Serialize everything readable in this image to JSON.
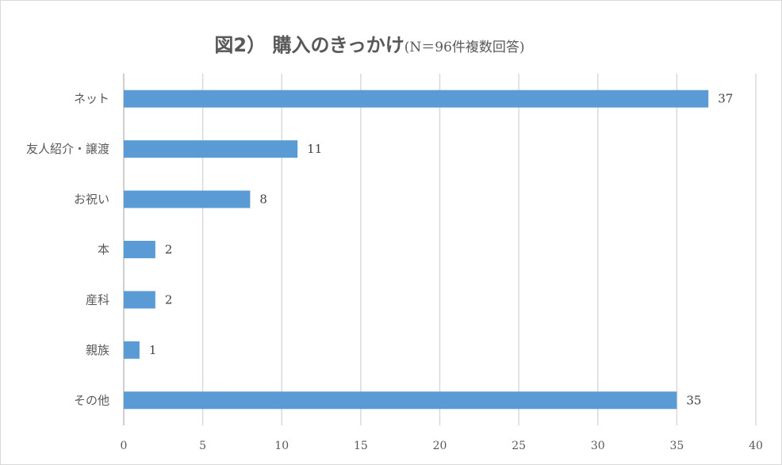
{
  "chart_data": {
    "type": "bar",
    "orientation": "horizontal",
    "title": "図2） 購入のきっかけ",
    "subtitle": "(N＝96件複数回答)",
    "categories": [
      "ネット",
      "友人紹介・譲渡",
      "お祝い",
      "本",
      "産科",
      "親族",
      "その他"
    ],
    "values": [
      37,
      11,
      8,
      2,
      2,
      1,
      35
    ],
    "xlim": [
      0,
      40
    ],
    "xticks": [
      0,
      5,
      10,
      15,
      20,
      25,
      30,
      35,
      40
    ],
    "grid": "vertical",
    "legend": "none",
    "bar_color": "#5b9bd5",
    "grid_color": "#d9d9d9"
  }
}
